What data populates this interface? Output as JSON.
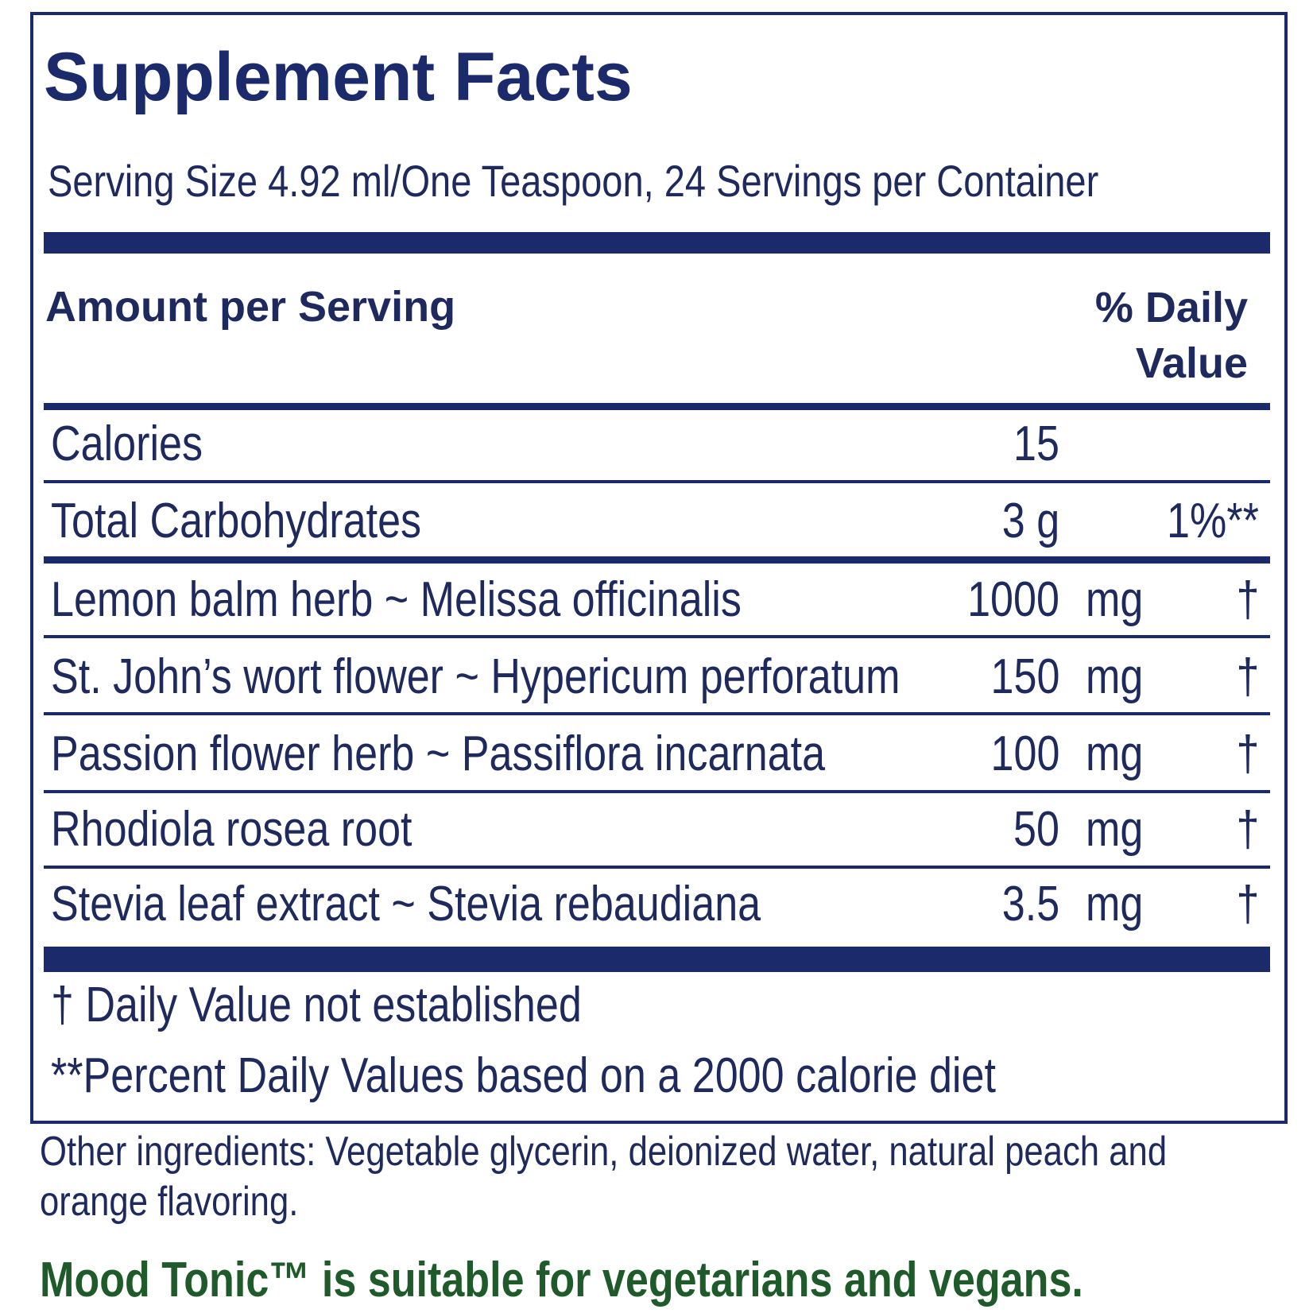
{
  "title": "Supplement Facts",
  "serving": "Serving Size 4.92 ml/One Teaspoon, 24 Servings per Container",
  "header": {
    "amount": "Amount per Serving",
    "daily_value": "% Daily Value"
  },
  "rows": [
    {
      "name": "Calories",
      "amount": "15"
    },
    {
      "name": "Total Carbohydrates",
      "amount": "3 g",
      "daily_value": "1%**"
    },
    {
      "name": "Lemon balm herb ~ Melissa officinalis",
      "amount": "1000",
      "unit": "mg",
      "daily_value": "†"
    },
    {
      "name": "St. John’s wort flower ~ Hypericum perforatum",
      "amount": "150",
      "unit": "mg",
      "daily_value": "†"
    },
    {
      "name": "Passion flower herb ~ Passiflora incarnata",
      "amount": "100",
      "unit": "mg",
      "daily_value": "†"
    },
    {
      "name": "Rhodiola rosea root",
      "amount": "50",
      "unit": "mg",
      "daily_value": "†"
    },
    {
      "name": "Stevia leaf extract ~ Stevia rebaudiana",
      "amount": "3.5",
      "unit": "mg",
      "daily_value": "†"
    }
  ],
  "footnotes": [
    "†  Daily Value not established",
    "**Percent Daily Values based on a 2000 calorie diet"
  ],
  "other_ingredients": "Other ingredients: Vegetable glycerin, deionized water, natural peach and orange flavoring.",
  "statement": "Mood Tonic™ is suitable for vegetarians and vegans."
}
